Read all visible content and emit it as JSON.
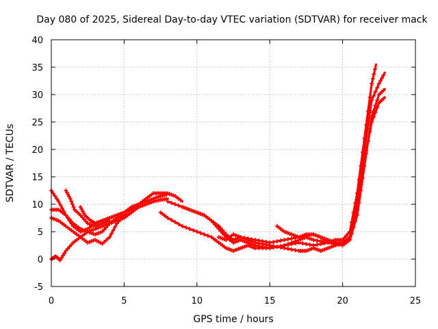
{
  "chart_data": {
    "type": "line",
    "title": "Day 080 of 2025, Sidereal Day-to-day VTEC variation (SDTVAR) for receiver mack",
    "xlabel": "GPS time / hours",
    "ylabel": "SDTVAR / TECUs",
    "xlim": [
      0,
      25
    ],
    "ylim": [
      -5,
      40
    ],
    "xticks": [
      0,
      5,
      10,
      15,
      20,
      25
    ],
    "yticks": [
      -5,
      0,
      5,
      10,
      15,
      20,
      25,
      30,
      35,
      40
    ],
    "grid": true,
    "marker": "+",
    "color": "#ff0000",
    "series": [
      {
        "name": "track-1",
        "x": [
          0.0,
          0.5,
          1.0,
          1.5,
          2.0,
          2.5,
          3.0,
          3.5,
          4.0,
          4.5,
          5.0,
          5.5,
          6.0,
          6.5,
          7.0,
          7.5,
          8.0
        ],
        "y": [
          12.5,
          10.5,
          8.0,
          6.0,
          5.0,
          5.5,
          6.5,
          7.0,
          7.5,
          8.0,
          8.5,
          9.0,
          10.0,
          10.5,
          11.0,
          11.5,
          11.8
        ]
      },
      {
        "name": "track-2",
        "x": [
          0.0,
          0.5,
          1.0,
          1.5,
          2.0,
          2.5,
          3.0,
          3.5,
          4.0,
          4.5,
          5.0,
          5.5,
          6.0,
          6.5,
          7.0,
          7.5,
          8.0
        ],
        "y": [
          9.0,
          9.0,
          8.0,
          6.5,
          5.5,
          5.0,
          4.5,
          5.0,
          6.5,
          7.5,
          8.0,
          8.5,
          9.5,
          10.0,
          10.5,
          10.8,
          11.0
        ]
      },
      {
        "name": "track-3",
        "x": [
          0.0,
          0.5,
          1.0,
          1.5,
          2.0,
          2.5,
          3.0,
          3.5,
          4.0,
          4.5,
          5.0
        ],
        "y": [
          7.5,
          7.0,
          6.0,
          5.0,
          4.0,
          3.0,
          3.5,
          2.8,
          4.0,
          6.5,
          8.0
        ]
      },
      {
        "name": "track-4",
        "x": [
          0.0,
          0.3,
          0.6,
          1.0,
          1.5,
          2.0,
          2.5,
          3.0,
          3.5,
          4.0,
          4.5,
          5.0,
          5.5,
          6.0
        ],
        "y": [
          0.0,
          0.5,
          -0.2,
          1.5,
          3.0,
          4.0,
          5.0,
          5.5,
          6.0,
          6.5,
          7.0,
          7.5,
          8.5,
          9.5
        ]
      },
      {
        "name": "track-5",
        "x": [
          1.0,
          1.3,
          1.6,
          2.0,
          2.5,
          3.0,
          3.5,
          4.0
        ],
        "y": [
          12.5,
          11.0,
          9.0,
          8.0,
          6.5,
          6.0,
          6.5,
          7.0
        ]
      },
      {
        "name": "track-6",
        "x": [
          2.0,
          2.3,
          2.7,
          3.0,
          3.5,
          4.0,
          4.5,
          5.0,
          5.5,
          6.0,
          6.5,
          7.0,
          7.5,
          8.0,
          8.5,
          9.0
        ],
        "y": [
          9.5,
          8.0,
          7.0,
          6.5,
          7.0,
          7.5,
          8.0,
          8.5,
          9.5,
          10.0,
          11.0,
          12.0,
          12.0,
          12.0,
          11.5,
          10.5
        ]
      },
      {
        "name": "track-7",
        "x": [
          7.5,
          8.0,
          9.0,
          10.0,
          11.0,
          11.5,
          12.0,
          12.5,
          13.0,
          13.5,
          14.0,
          15.0,
          16.0,
          17.0,
          18.0,
          19.0,
          19.5,
          20.0,
          20.5,
          21.0,
          21.5,
          22.0,
          22.3
        ],
        "y": [
          8.5,
          7.5,
          6.0,
          5.0,
          4.0,
          3.0,
          2.0,
          1.5,
          2.0,
          2.5,
          2.0,
          2.0,
          2.5,
          3.0,
          2.5,
          3.0,
          3.5,
          3.5,
          5.0,
          12.0,
          22.0,
          32.0,
          35.5
        ]
      },
      {
        "name": "track-8",
        "x": [
          8.0,
          9.0,
          10.0,
          10.5,
          11.0,
          11.5,
          12.0,
          12.5,
          13.0,
          13.5,
          14.0,
          15.0,
          16.0,
          17.0,
          17.5,
          18.0,
          19.0,
          20.0,
          20.5,
          21.0,
          21.5,
          22.0,
          22.5,
          22.9
        ],
        "y": [
          10.5,
          9.5,
          8.5,
          8.0,
          7.0,
          5.5,
          4.0,
          3.0,
          3.5,
          3.0,
          2.5,
          2.0,
          2.5,
          3.5,
          4.0,
          3.5,
          3.0,
          3.0,
          4.0,
          10.0,
          20.0,
          29.0,
          32.0,
          34.0
        ]
      },
      {
        "name": "track-9",
        "x": [
          9.0,
          9.5,
          10.0,
          10.5,
          11.0,
          11.5,
          12.0,
          12.5,
          13.0,
          14.0,
          15.0,
          16.0,
          17.0,
          18.0,
          18.5,
          19.0,
          20.0,
          20.5,
          21.0,
          21.5,
          22.0,
          22.5,
          22.9
        ],
        "y": [
          9.5,
          9.0,
          8.5,
          8.0,
          7.0,
          6.0,
          4.5,
          3.5,
          4.0,
          3.5,
          3.0,
          3.5,
          4.0,
          4.5,
          4.0,
          3.0,
          2.5,
          3.5,
          8.0,
          17.0,
          26.0,
          30.0,
          31.0
        ]
      },
      {
        "name": "track-10",
        "x": [
          11.5,
          12.0,
          12.5,
          13.0,
          14.0,
          15.0,
          16.0,
          17.0,
          17.5,
          18.0,
          18.5,
          19.0,
          19.5,
          20.0,
          20.5,
          21.0,
          21.5,
          22.0,
          22.5,
          22.9
        ],
        "y": [
          4.0,
          3.5,
          4.5,
          4.0,
          3.0,
          2.5,
          2.0,
          1.5,
          1.5,
          2.0,
          1.5,
          2.0,
          2.5,
          3.0,
          4.0,
          9.0,
          18.0,
          25.0,
          28.5,
          29.5
        ]
      },
      {
        "name": "track-11",
        "x": [
          15.5,
          16.0,
          16.5,
          17.0,
          17.5,
          18.0,
          18.5,
          19.0,
          19.5
        ],
        "y": [
          6.0,
          5.0,
          4.5,
          4.0,
          4.5,
          4.5,
          4.0,
          3.5,
          3.0
        ]
      }
    ]
  }
}
